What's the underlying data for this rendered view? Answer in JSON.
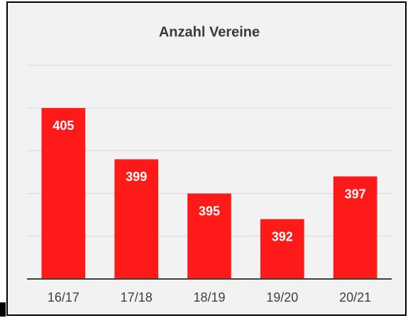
{
  "chart_data": {
    "type": "bar",
    "title": "Anzahl Vereine",
    "categories": [
      "16/17",
      "17/18",
      "18/19",
      "19/20",
      "20/21"
    ],
    "values": [
      405,
      399,
      395,
      392,
      397
    ],
    "color": "#ff1a1a",
    "ylim": [
      385,
      410
    ],
    "yticks": [
      385,
      390,
      395,
      400,
      405,
      410
    ],
    "grid": true
  }
}
